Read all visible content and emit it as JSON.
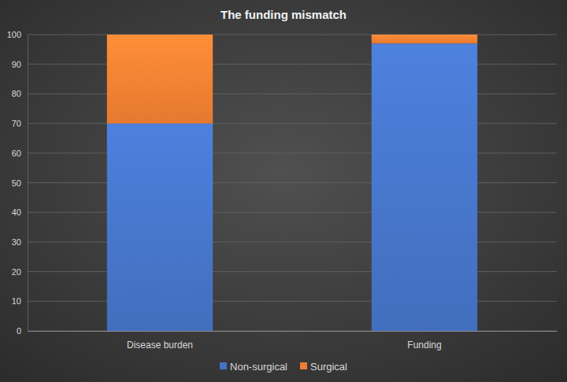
{
  "chart_data": {
    "type": "bar",
    "title": "The funding mismatch",
    "categories": [
      "Disease burden",
      "Funding"
    ],
    "series": [
      {
        "name": "Non-surgical",
        "color": "#4472c4",
        "values": [
          70,
          97
        ]
      },
      {
        "name": "Surgical",
        "color": "#ed7d31",
        "values": [
          30,
          3
        ]
      }
    ],
    "ylim": [
      0,
      100
    ],
    "yticks": [
      0,
      10,
      20,
      30,
      40,
      50,
      60,
      70,
      80,
      90,
      100
    ],
    "grid": true,
    "stacked": true,
    "legend": "bottom"
  }
}
